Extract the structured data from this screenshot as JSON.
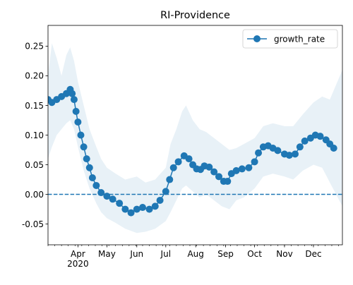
{
  "chart_data": {
    "type": "line",
    "title": "RI-Providence",
    "xlabel": "",
    "ylabel": "",
    "x_range": [
      "2020-03-01",
      "2020-12-31"
    ],
    "ylim": [
      -0.085,
      0.285
    ],
    "y_ticks": [
      -0.05,
      0.0,
      0.05,
      0.1,
      0.15,
      0.2,
      0.25
    ],
    "x_ticks": [
      {
        "date": "2020-04-01",
        "label": "Apr",
        "sublabel": "2020"
      },
      {
        "date": "2020-05-01",
        "label": "May"
      },
      {
        "date": "2020-06-01",
        "label": "Jun"
      },
      {
        "date": "2020-07-01",
        "label": "Jul"
      },
      {
        "date": "2020-08-01",
        "label": "Aug"
      },
      {
        "date": "2020-09-01",
        "label": "Sep"
      },
      {
        "date": "2020-10-01",
        "label": "Oct"
      },
      {
        "date": "2020-11-01",
        "label": "Nov"
      },
      {
        "date": "2020-12-01",
        "label": "Dec"
      }
    ],
    "grid": false,
    "legend": {
      "position": "top-right",
      "entries": [
        {
          "label": "growth_rate",
          "marker": "circle"
        }
      ]
    },
    "reference_line": {
      "y": 0.0,
      "style": "dashed"
    },
    "series": [
      {
        "name": "growth_rate",
        "color": "#1f77b4",
        "band_color": "#1f77b4",
        "points": [
          [
            "2020-03-01",
            0.16
          ],
          [
            "2020-03-05",
            0.155
          ],
          [
            "2020-03-10",
            0.16
          ],
          [
            "2020-03-15",
            0.165
          ],
          [
            "2020-03-20",
            0.17
          ],
          [
            "2020-03-24",
            0.177
          ],
          [
            "2020-03-26",
            0.17
          ],
          [
            "2020-03-28",
            0.16
          ],
          [
            "2020-03-30",
            0.14
          ],
          [
            "2020-04-01",
            0.122
          ],
          [
            "2020-04-04",
            0.1
          ],
          [
            "2020-04-07",
            0.08
          ],
          [
            "2020-04-10",
            0.06
          ],
          [
            "2020-04-13",
            0.045
          ],
          [
            "2020-04-16",
            0.028
          ],
          [
            "2020-04-20",
            0.015
          ],
          [
            "2020-04-25",
            0.003
          ],
          [
            "2020-05-01",
            -0.003
          ],
          [
            "2020-05-07",
            -0.008
          ],
          [
            "2020-05-14",
            -0.015
          ],
          [
            "2020-05-20",
            -0.025
          ],
          [
            "2020-05-26",
            -0.031
          ],
          [
            "2020-06-01",
            -0.025
          ],
          [
            "2020-06-07",
            -0.022
          ],
          [
            "2020-06-14",
            -0.025
          ],
          [
            "2020-06-20",
            -0.02
          ],
          [
            "2020-06-25",
            -0.01
          ],
          [
            "2020-07-01",
            0.005
          ],
          [
            "2020-07-05",
            0.025
          ],
          [
            "2020-07-09",
            0.045
          ],
          [
            "2020-07-14",
            0.055
          ],
          [
            "2020-07-20",
            0.065
          ],
          [
            "2020-07-25",
            0.06
          ],
          [
            "2020-07-29",
            0.05
          ],
          [
            "2020-08-02",
            0.043
          ],
          [
            "2020-08-06",
            0.042
          ],
          [
            "2020-08-10",
            0.048
          ],
          [
            "2020-08-15",
            0.046
          ],
          [
            "2020-08-20",
            0.038
          ],
          [
            "2020-08-25",
            0.03
          ],
          [
            "2020-08-30",
            0.022
          ],
          [
            "2020-09-03",
            0.022
          ],
          [
            "2020-09-07",
            0.035
          ],
          [
            "2020-09-12",
            0.04
          ],
          [
            "2020-09-18",
            0.043
          ],
          [
            "2020-09-25",
            0.045
          ],
          [
            "2020-10-01",
            0.055
          ],
          [
            "2020-10-05",
            0.07
          ],
          [
            "2020-10-10",
            0.08
          ],
          [
            "2020-10-15",
            0.082
          ],
          [
            "2020-10-20",
            0.078
          ],
          [
            "2020-10-25",
            0.074
          ],
          [
            "2020-11-01",
            0.068
          ],
          [
            "2020-11-06",
            0.066
          ],
          [
            "2020-11-12",
            0.068
          ],
          [
            "2020-11-17",
            0.08
          ],
          [
            "2020-11-22",
            0.09
          ],
          [
            "2020-11-28",
            0.095
          ],
          [
            "2020-12-03",
            0.1
          ],
          [
            "2020-12-08",
            0.098
          ],
          [
            "2020-12-14",
            0.092
          ],
          [
            "2020-12-18",
            0.085
          ],
          [
            "2020-12-22",
            0.078
          ]
        ],
        "upper": [
          [
            "2020-03-01",
            0.2
          ],
          [
            "2020-03-05",
            0.255
          ],
          [
            "2020-03-10",
            0.23
          ],
          [
            "2020-03-15",
            0.2
          ],
          [
            "2020-03-20",
            0.235
          ],
          [
            "2020-03-24",
            0.248
          ],
          [
            "2020-03-28",
            0.225
          ],
          [
            "2020-04-01",
            0.19
          ],
          [
            "2020-04-07",
            0.15
          ],
          [
            "2020-04-13",
            0.11
          ],
          [
            "2020-04-20",
            0.08
          ],
          [
            "2020-04-25",
            0.06
          ],
          [
            "2020-05-01",
            0.045
          ],
          [
            "2020-05-10",
            0.035
          ],
          [
            "2020-05-20",
            0.025
          ],
          [
            "2020-06-01",
            0.03
          ],
          [
            "2020-06-10",
            0.02
          ],
          [
            "2020-06-20",
            0.025
          ],
          [
            "2020-07-01",
            0.045
          ],
          [
            "2020-07-06",
            0.085
          ],
          [
            "2020-07-12",
            0.11
          ],
          [
            "2020-07-18",
            0.14
          ],
          [
            "2020-07-22",
            0.15
          ],
          [
            "2020-07-29",
            0.125
          ],
          [
            "2020-08-05",
            0.11
          ],
          [
            "2020-08-12",
            0.105
          ],
          [
            "2020-08-20",
            0.095
          ],
          [
            "2020-08-28",
            0.085
          ],
          [
            "2020-09-05",
            0.075
          ],
          [
            "2020-09-12",
            0.078
          ],
          [
            "2020-09-20",
            0.085
          ],
          [
            "2020-10-01",
            0.095
          ],
          [
            "2020-10-10",
            0.115
          ],
          [
            "2020-10-20",
            0.12
          ],
          [
            "2020-11-01",
            0.115
          ],
          [
            "2020-11-10",
            0.115
          ],
          [
            "2020-11-20",
            0.135
          ],
          [
            "2020-12-01",
            0.155
          ],
          [
            "2020-12-10",
            0.165
          ],
          [
            "2020-12-18",
            0.16
          ],
          [
            "2020-12-31",
            0.21
          ]
        ],
        "lower": [
          [
            "2020-03-01",
            0.06
          ],
          [
            "2020-03-05",
            0.08
          ],
          [
            "2020-03-10",
            0.1
          ],
          [
            "2020-03-15",
            0.11
          ],
          [
            "2020-03-20",
            0.12
          ],
          [
            "2020-03-24",
            0.125
          ],
          [
            "2020-03-28",
            0.11
          ],
          [
            "2020-04-01",
            0.08
          ],
          [
            "2020-04-07",
            0.04
          ],
          [
            "2020-04-13",
            0.01
          ],
          [
            "2020-04-20",
            -0.015
          ],
          [
            "2020-04-25",
            -0.03
          ],
          [
            "2020-05-01",
            -0.04
          ],
          [
            "2020-05-10",
            -0.048
          ],
          [
            "2020-05-20",
            -0.058
          ],
          [
            "2020-06-01",
            -0.065
          ],
          [
            "2020-06-10",
            -0.063
          ],
          [
            "2020-06-20",
            -0.058
          ],
          [
            "2020-07-01",
            -0.045
          ],
          [
            "2020-07-06",
            -0.03
          ],
          [
            "2020-07-12",
            -0.01
          ],
          [
            "2020-07-18",
            0.01
          ],
          [
            "2020-07-22",
            0.015
          ],
          [
            "2020-07-29",
            0.005
          ],
          [
            "2020-08-05",
            -0.005
          ],
          [
            "2020-08-12",
            0.0
          ],
          [
            "2020-08-20",
            -0.01
          ],
          [
            "2020-08-28",
            -0.02
          ],
          [
            "2020-09-05",
            -0.025
          ],
          [
            "2020-09-12",
            -0.01
          ],
          [
            "2020-09-20",
            -0.005
          ],
          [
            "2020-10-01",
            0.01
          ],
          [
            "2020-10-10",
            0.03
          ],
          [
            "2020-10-20",
            0.035
          ],
          [
            "2020-11-01",
            0.03
          ],
          [
            "2020-11-10",
            0.025
          ],
          [
            "2020-11-20",
            0.04
          ],
          [
            "2020-12-01",
            0.05
          ],
          [
            "2020-12-10",
            0.045
          ],
          [
            "2020-12-18",
            0.02
          ],
          [
            "2020-12-31",
            -0.02
          ]
        ]
      }
    ]
  }
}
